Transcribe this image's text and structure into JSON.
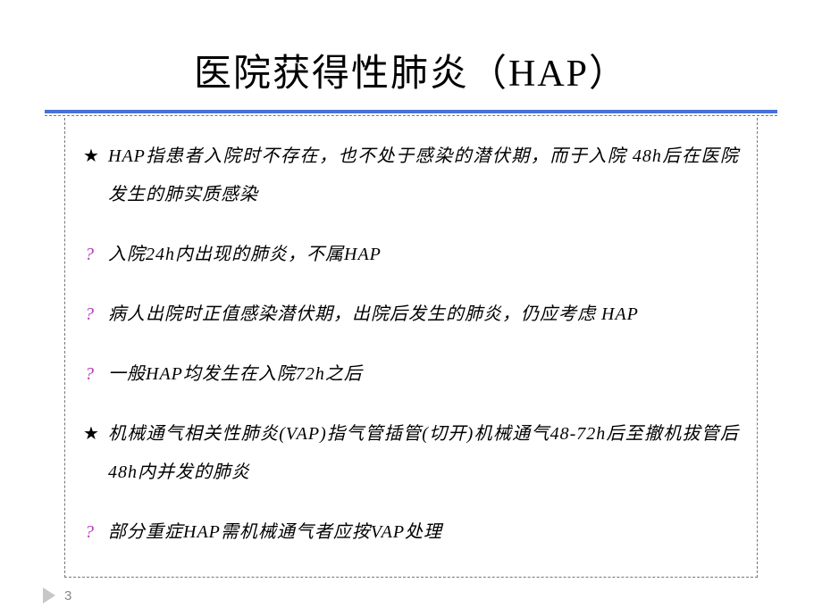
{
  "title": "医院获得性肺炎（HAP）",
  "colors": {
    "rule_blue": "#4a70d8",
    "dash": "#777777",
    "q_bullet": "#b83fbc",
    "text": "#000000",
    "page_num": "#888888",
    "arrow": "#c7c7c7",
    "background": "#ffffff"
  },
  "bullets": {
    "star": "★",
    "q": "?"
  },
  "items": [
    {
      "marker": "star",
      "text": "HAP指患者入院时不存在，也不处于感染的潜伏期，而于入院 48h后在医院发生的肺实质感染"
    },
    {
      "marker": "q",
      "text": "入院24h内出现的肺炎，不属HAP"
    },
    {
      "marker": "q",
      "text": "病人出院时正值感染潜伏期，出院后发生的肺炎，仍应考虑 HAP"
    },
    {
      "marker": "q",
      "text": "一般HAP均发生在入院72h之后"
    },
    {
      "marker": "star",
      "text": "机械通气相关性肺炎(VAP)指气管插管(切开)机械通气48-72h后至撤机拔管后48h内并发的肺炎"
    },
    {
      "marker": "q",
      "text": "部分重症HAP需机械通气者应按VAP处理"
    }
  ],
  "page_number": "3"
}
